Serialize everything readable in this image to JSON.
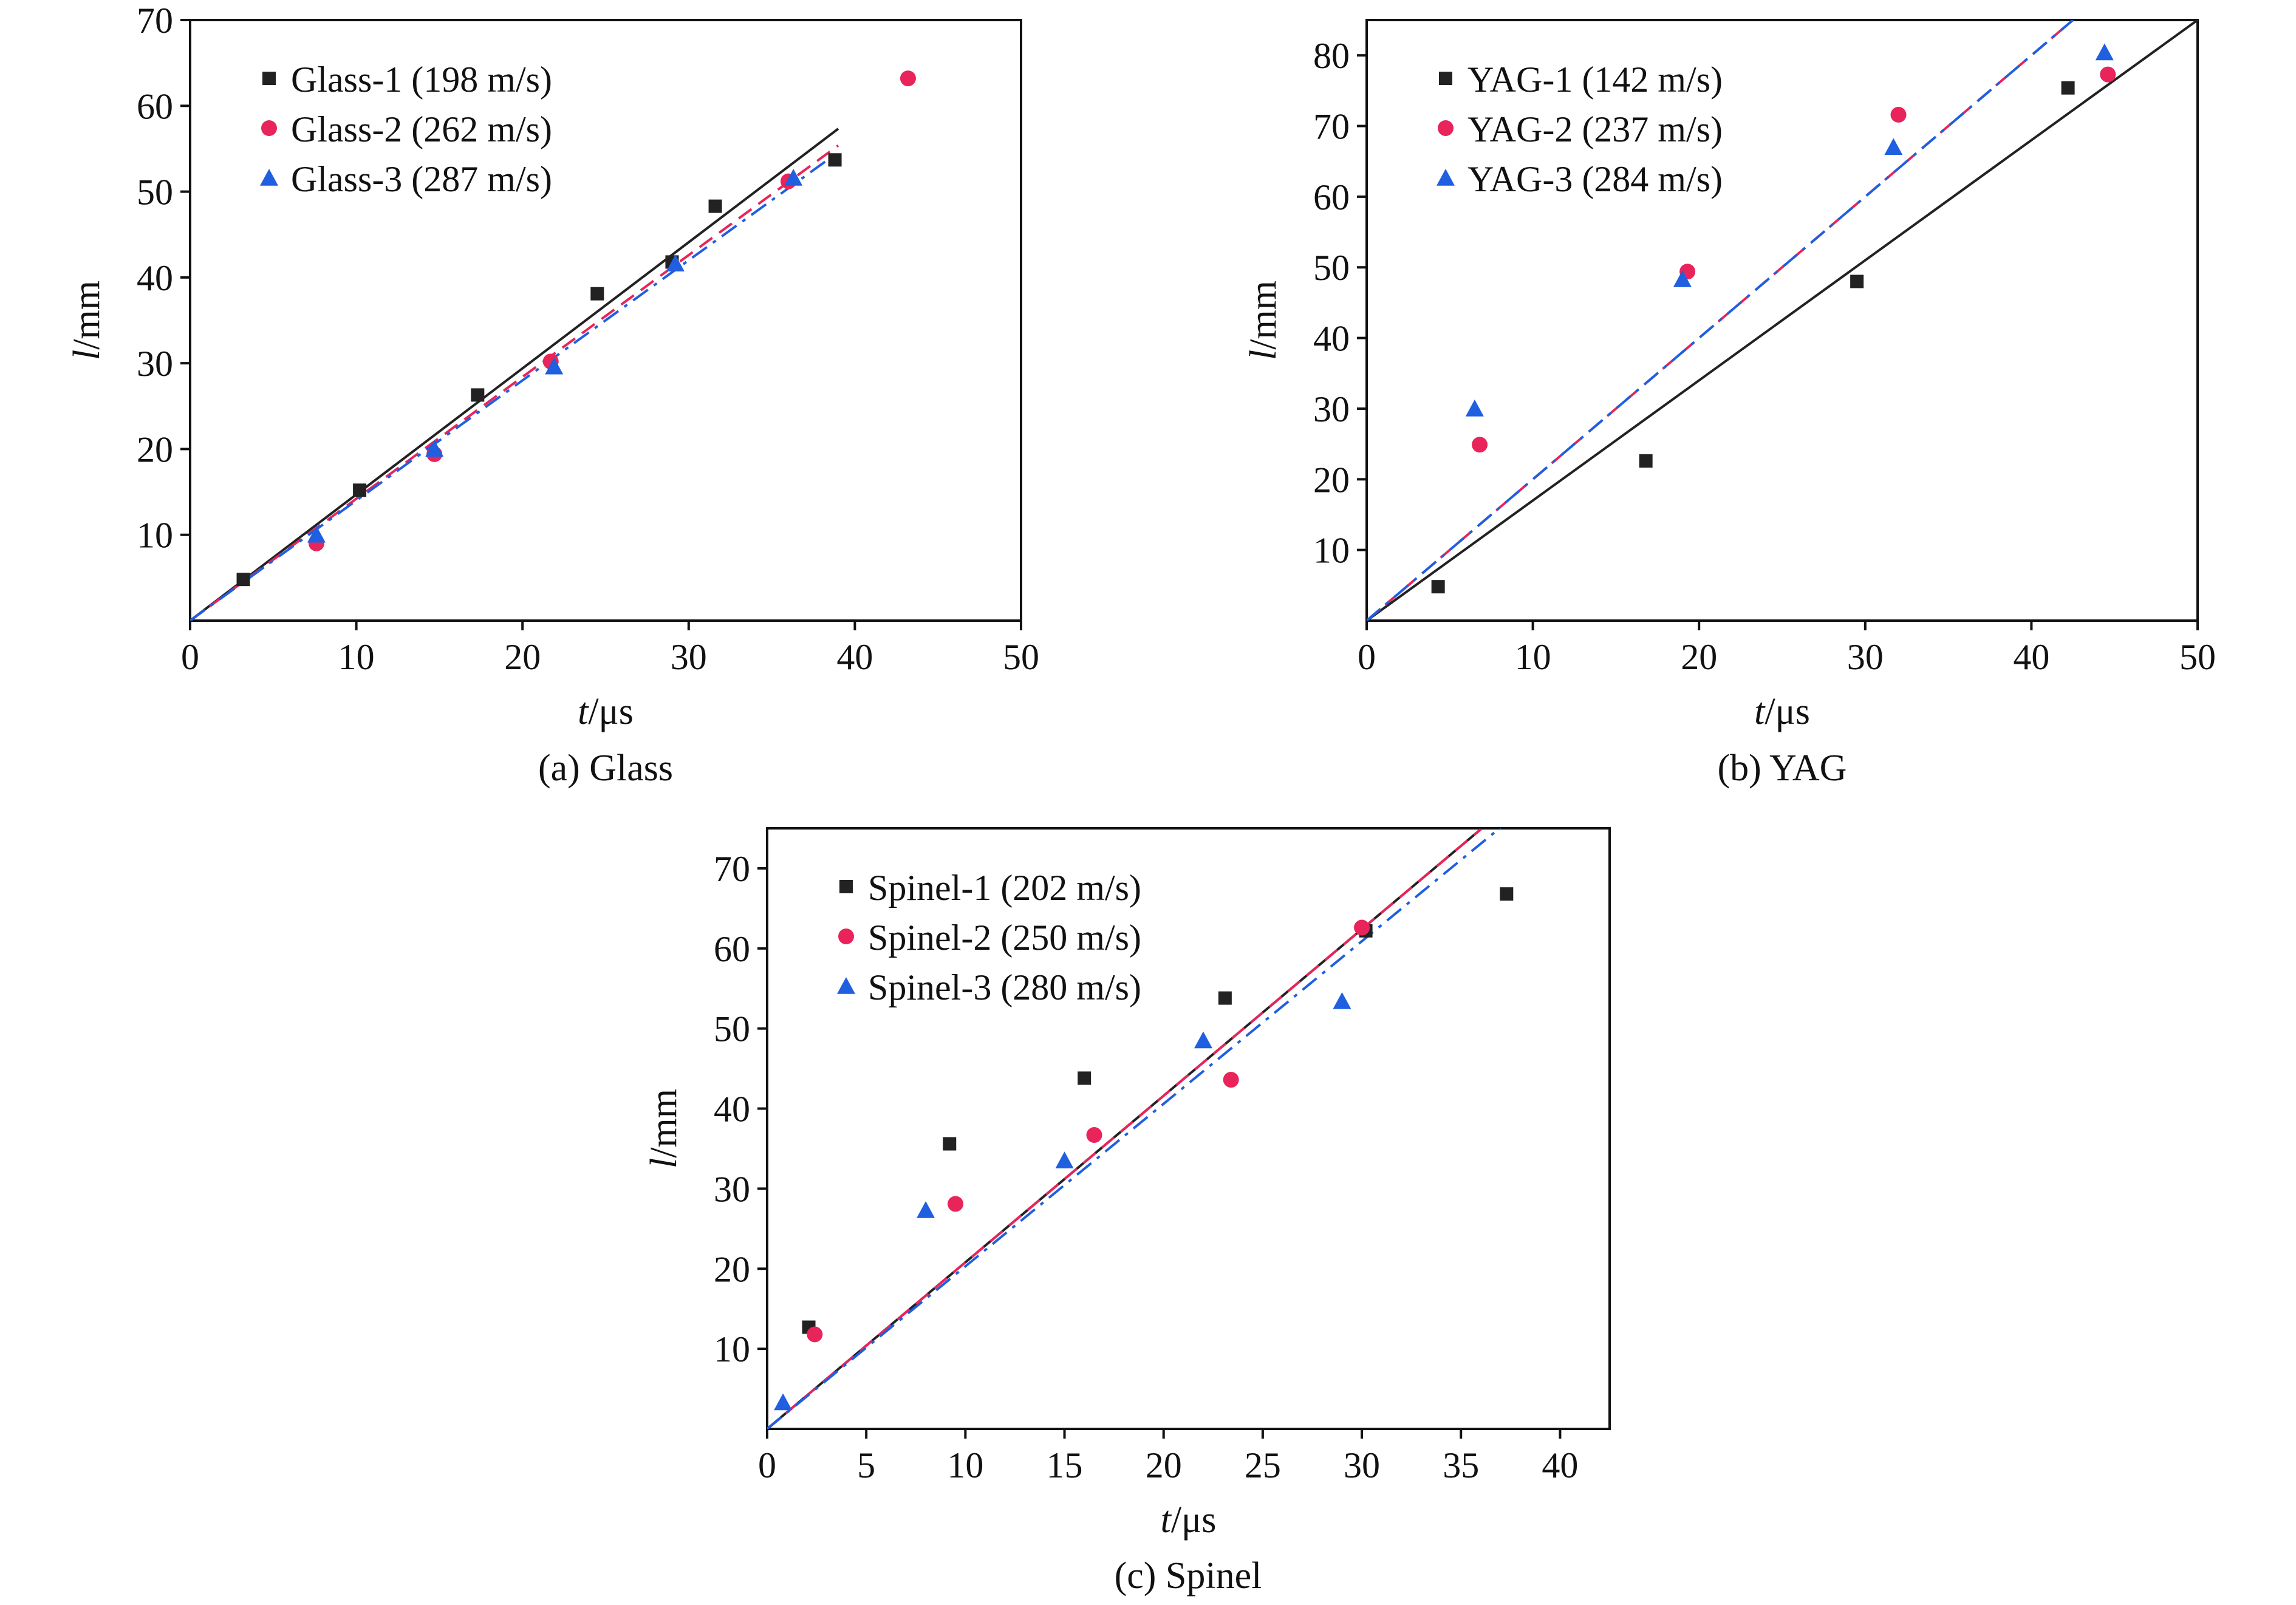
{
  "chart_data": [
    {
      "type": "scatter",
      "caption": "(a) Glass",
      "xlabel_italic": "t",
      "xlabel_unit": "/μs",
      "ylabel_italic": "l",
      "ylabel_unit": "/mm",
      "xlim": [
        0,
        50
      ],
      "ylim": [
        0,
        70
      ],
      "xticks": [
        0,
        10,
        20,
        30,
        40,
        50
      ],
      "yticks": [
        10,
        20,
        30,
        40,
        50,
        60,
        70
      ],
      "legend_position": "top-left",
      "series": [
        {
          "name": "Glass-1 (198 m/s)",
          "marker": "square",
          "color": "#222222",
          "line": "solid",
          "fit_slope": 1.47,
          "fit_xmax": 39,
          "points": [
            [
              3.2,
              4.8
            ],
            [
              10.2,
              15.2
            ],
            [
              17.3,
              26.3
            ],
            [
              24.5,
              38.1
            ],
            [
              29.0,
              41.8
            ],
            [
              31.6,
              48.3
            ],
            [
              38.8,
              53.7
            ]
          ]
        },
        {
          "name": "Glass-2 (262 m/s)",
          "marker": "circle",
          "color": "#e8245a",
          "line": "dashed",
          "fit_slope": 1.42,
          "fit_xmax": 39,
          "points": [
            [
              7.6,
              9.0
            ],
            [
              14.7,
              19.4
            ],
            [
              21.7,
              30.2
            ],
            [
              36.0,
              51.2
            ],
            [
              43.2,
              63.2
            ]
          ]
        },
        {
          "name": "Glass-3 (287 m/s)",
          "marker": "triangle",
          "color": "#1f5fe0",
          "line": "dashdot",
          "fit_slope": 1.4,
          "fit_xmax": 39,
          "points": [
            [
              7.6,
              10.0
            ],
            [
              14.7,
              20.0
            ],
            [
              21.9,
              29.6
            ],
            [
              29.2,
              41.6
            ],
            [
              36.3,
              51.6
            ]
          ]
        }
      ]
    },
    {
      "type": "scatter",
      "caption": "(b) YAG",
      "xlabel_italic": "t",
      "xlabel_unit": "/μs",
      "ylabel_italic": "l",
      "ylabel_unit": "/mm",
      "xlim": [
        0,
        50
      ],
      "ylim": [
        0,
        85
      ],
      "xticks": [
        0,
        10,
        20,
        30,
        40,
        50
      ],
      "yticks": [
        10,
        20,
        30,
        40,
        50,
        60,
        70,
        80
      ],
      "legend_position": "top-left",
      "series": [
        {
          "name": "YAG-1 (142 m/s)",
          "marker": "square",
          "color": "#222222",
          "line": "solid",
          "fit_slope": 1.7,
          "fit_xmax": 50,
          "points": [
            [
              4.3,
              4.8
            ],
            [
              16.8,
              22.6
            ],
            [
              29.5,
              48.0
            ],
            [
              42.2,
              75.4
            ]
          ]
        },
        {
          "name": "YAG-2 (237 m/s)",
          "marker": "circle",
          "color": "#e8245a",
          "line": "dashed",
          "fit_slope": 2.0,
          "fit_xmax": 42.5,
          "points": [
            [
              6.8,
              24.9
            ],
            [
              19.3,
              49.4
            ],
            [
              32.0,
              71.6
            ],
            [
              44.6,
              77.3
            ]
          ]
        },
        {
          "name": "YAG-3 (284 m/s)",
          "marker": "triangle",
          "color": "#1f5fe0",
          "line": "dashdot",
          "fit_slope": 2.0,
          "fit_xmax": 42.5,
          "points": [
            [
              6.5,
              30.0
            ],
            [
              19.0,
              48.3
            ],
            [
              31.7,
              67.0
            ],
            [
              44.4,
              80.4
            ]
          ]
        }
      ]
    },
    {
      "type": "scatter",
      "caption": "(c) Spinel",
      "xlabel_italic": "t",
      "xlabel_unit": "/μs",
      "ylabel_italic": "l",
      "ylabel_unit": "/mm",
      "xlim": [
        0,
        42.5
      ],
      "ylim": [
        0,
        75
      ],
      "xticks": [
        0,
        5,
        10,
        15,
        20,
        25,
        30,
        35,
        40
      ],
      "yticks": [
        10,
        20,
        30,
        40,
        50,
        60,
        70
      ],
      "legend_position": "top-left",
      "series": [
        {
          "name": "Spinel-1 (202 m/s)",
          "marker": "square",
          "color": "#222222",
          "line": "solid",
          "fit_slope": 2.08,
          "fit_xmax": 36,
          "points": [
            [
              2.1,
              12.7
            ],
            [
              9.2,
              35.6
            ],
            [
              16.0,
              43.8
            ],
            [
              23.1,
              53.8
            ],
            [
              30.2,
              62.2
            ],
            [
              37.3,
              66.8
            ]
          ]
        },
        {
          "name": "Spinel-2 (250 m/s)",
          "marker": "circle",
          "color": "#e8245a",
          "line": "dashed",
          "fit_slope": 2.08,
          "fit_xmax": 36,
          "points": [
            [
              2.4,
              11.8
            ],
            [
              9.5,
              28.1
            ],
            [
              16.5,
              36.7
            ],
            [
              23.4,
              43.6
            ],
            [
              30.0,
              62.6
            ]
          ]
        },
        {
          "name": "Spinel-3 (280 m/s)",
          "marker": "triangle",
          "color": "#1f5fe0",
          "line": "dashdot",
          "fit_slope": 2.03,
          "fit_xmax": 37,
          "points": [
            [
              0.8,
              3.3
            ],
            [
              8.0,
              27.3
            ],
            [
              15.0,
              33.5
            ],
            [
              22.0,
              48.5
            ],
            [
              29.0,
              53.4
            ]
          ]
        }
      ]
    }
  ]
}
